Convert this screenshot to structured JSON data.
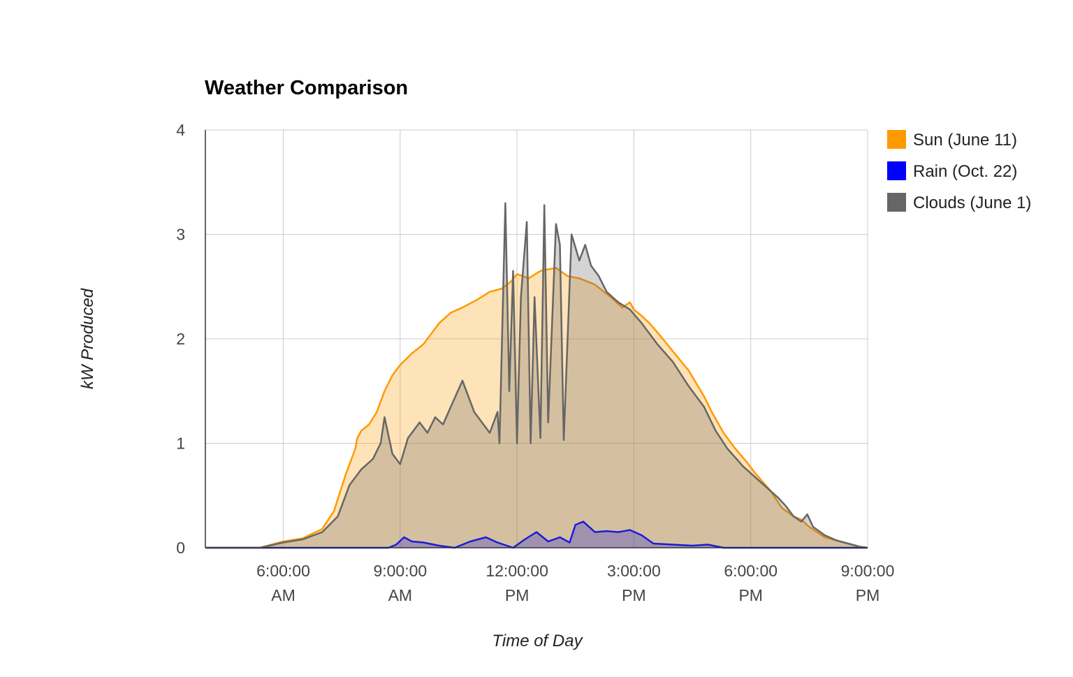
{
  "chart_data": {
    "type": "area",
    "title": "Weather Comparison",
    "xlabel": "Time of Day",
    "ylabel": "kW Produced",
    "x_unit": "hours",
    "xlim": [
      4,
      21
    ],
    "ylim": [
      0,
      4
    ],
    "grid": true,
    "legend_position": "right",
    "y_ticks": [
      {
        "value": 0,
        "label": "0"
      },
      {
        "value": 1,
        "label": "1"
      },
      {
        "value": 2,
        "label": "2"
      },
      {
        "value": 3,
        "label": "3"
      },
      {
        "value": 4,
        "label": "4"
      }
    ],
    "x_ticks": [
      {
        "value": 6,
        "line1": "6:00:00",
        "line2": "AM"
      },
      {
        "value": 9,
        "line1": "9:00:00",
        "line2": "AM"
      },
      {
        "value": 12,
        "line1": "12:00:00",
        "line2": "PM"
      },
      {
        "value": 15,
        "line1": "3:00:00",
        "line2": "PM"
      },
      {
        "value": 18,
        "line1": "6:00:00",
        "line2": "PM"
      },
      {
        "value": 21,
        "line1": "9:00:00",
        "line2": "PM"
      }
    ],
    "series": [
      {
        "name": "Sun (June 11)",
        "color": "#ff9900",
        "x": [
          4.0,
          5.4,
          6.0,
          6.5,
          7.0,
          7.3,
          7.6,
          7.85,
          7.9,
          8.0,
          8.2,
          8.4,
          8.6,
          8.8,
          9.0,
          9.3,
          9.6,
          10.0,
          10.3,
          10.6,
          11.0,
          11.3,
          11.6,
          11.85,
          12.0,
          12.3,
          12.6,
          13.0,
          13.3,
          13.6,
          14.0,
          14.4,
          14.7,
          14.9,
          15.0,
          15.2,
          15.4,
          15.7,
          16.0,
          16.4,
          16.8,
          17.0,
          17.3,
          17.6,
          17.9,
          18.1,
          18.5,
          18.8,
          19.1,
          19.3,
          19.5,
          19.7,
          19.9,
          20.2,
          20.5,
          20.8,
          21.0
        ],
        "values": [
          0.0,
          0.0,
          0.06,
          0.09,
          0.18,
          0.35,
          0.7,
          0.95,
          1.05,
          1.12,
          1.18,
          1.3,
          1.5,
          1.65,
          1.75,
          1.86,
          1.95,
          2.15,
          2.25,
          2.3,
          2.38,
          2.45,
          2.48,
          2.55,
          2.62,
          2.58,
          2.65,
          2.68,
          2.6,
          2.58,
          2.52,
          2.4,
          2.3,
          2.35,
          2.28,
          2.22,
          2.15,
          2.02,
          1.88,
          1.7,
          1.45,
          1.3,
          1.1,
          0.95,
          0.82,
          0.72,
          0.55,
          0.38,
          0.3,
          0.27,
          0.2,
          0.15,
          0.1,
          0.07,
          0.04,
          0.01,
          0.0
        ]
      },
      {
        "name": "Rain (Oct. 22)",
        "color": "#0000ff",
        "x": [
          4.0,
          8.7,
          8.9,
          9.1,
          9.3,
          9.6,
          10.0,
          10.4,
          10.8,
          11.2,
          11.5,
          11.9,
          12.2,
          12.5,
          12.8,
          13.1,
          13.35,
          13.5,
          13.7,
          14.0,
          14.3,
          14.6,
          14.9,
          15.2,
          15.5,
          16.0,
          16.5,
          16.9,
          17.3,
          21.0
        ],
        "values": [
          0.0,
          0.0,
          0.03,
          0.1,
          0.06,
          0.05,
          0.02,
          0.0,
          0.06,
          0.1,
          0.05,
          0.0,
          0.08,
          0.15,
          0.06,
          0.1,
          0.05,
          0.22,
          0.25,
          0.15,
          0.16,
          0.15,
          0.17,
          0.12,
          0.04,
          0.03,
          0.02,
          0.03,
          0.0,
          0.0
        ]
      },
      {
        "name": "Clouds (June 1)",
        "color": "#666666",
        "x": [
          4.0,
          5.4,
          6.0,
          6.5,
          7.0,
          7.4,
          7.7,
          8.0,
          8.3,
          8.5,
          8.6,
          8.8,
          9.0,
          9.2,
          9.5,
          9.7,
          9.9,
          10.1,
          10.3,
          10.6,
          10.9,
          11.1,
          11.3,
          11.5,
          11.55,
          11.7,
          11.8,
          11.9,
          12.0,
          12.1,
          12.25,
          12.35,
          12.45,
          12.6,
          12.7,
          12.8,
          13.0,
          13.1,
          13.2,
          13.4,
          13.6,
          13.75,
          13.9,
          14.1,
          14.3,
          14.6,
          14.9,
          15.2,
          15.6,
          16.0,
          16.4,
          16.8,
          17.1,
          17.4,
          17.8,
          18.1,
          18.4,
          18.7,
          18.9,
          19.1,
          19.3,
          19.45,
          19.6,
          19.9,
          20.2,
          20.5,
          20.8,
          21.0
        ],
        "values": [
          0.0,
          0.0,
          0.05,
          0.08,
          0.15,
          0.3,
          0.6,
          0.75,
          0.85,
          1.0,
          1.25,
          0.9,
          0.8,
          1.05,
          1.2,
          1.1,
          1.25,
          1.18,
          1.35,
          1.6,
          1.3,
          1.2,
          1.1,
          1.3,
          1.0,
          3.3,
          1.5,
          2.65,
          1.0,
          2.4,
          3.12,
          1.0,
          2.4,
          1.05,
          3.28,
          1.2,
          3.1,
          2.9,
          1.03,
          3.0,
          2.75,
          2.9,
          2.7,
          2.6,
          2.45,
          2.35,
          2.28,
          2.15,
          1.95,
          1.78,
          1.55,
          1.35,
          1.12,
          0.95,
          0.78,
          0.68,
          0.58,
          0.48,
          0.4,
          0.3,
          0.25,
          0.32,
          0.2,
          0.12,
          0.07,
          0.04,
          0.01,
          0.0
        ]
      }
    ]
  }
}
